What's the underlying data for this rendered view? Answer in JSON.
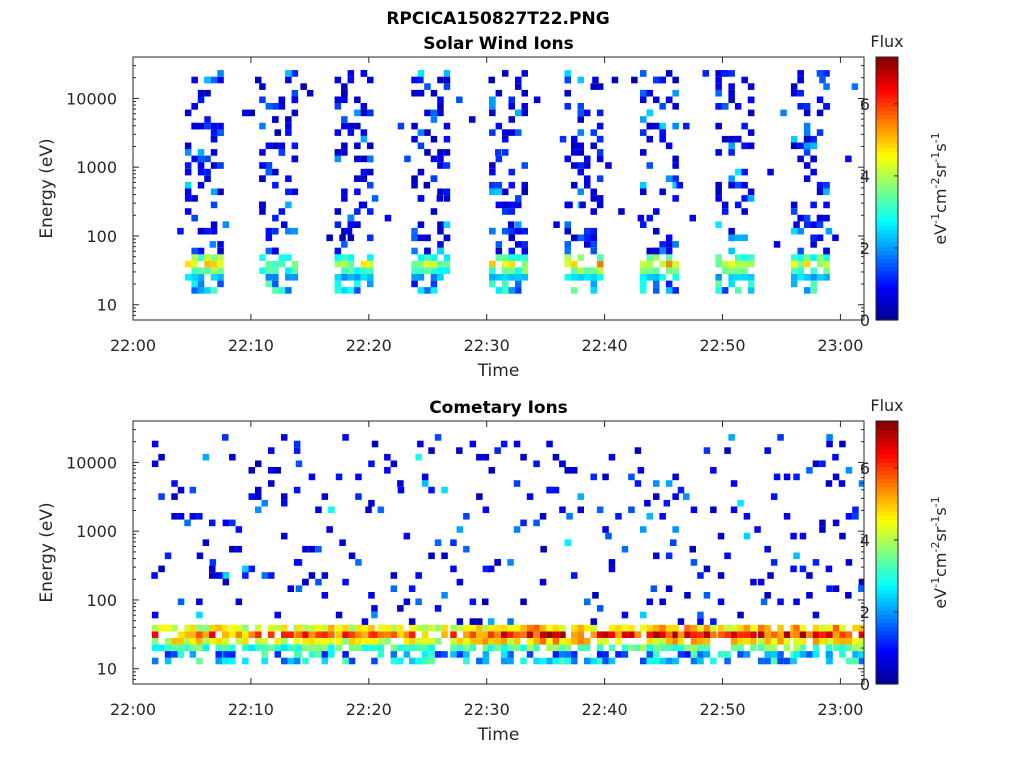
{
  "figure_title": "RPCICA150827T22.PNG",
  "colors": {
    "jet": [
      "#00008f",
      "#0000ff",
      "#0080ff",
      "#00ffff",
      "#80ff80",
      "#ffff00",
      "#ff8000",
      "#ff0000",
      "#800000"
    ]
  },
  "chart_data": [
    {
      "type": "heatmap",
      "title": "Solar Wind Ions",
      "xlabel": "Time",
      "ylabel": "Energy (eV)",
      "x_ticks": [
        "22:00",
        "22:10",
        "22:20",
        "22:30",
        "22:40",
        "22:50",
        "23:00"
      ],
      "xlim_minutes": [
        0,
        62
      ],
      "yscale": "log",
      "ylim": [
        6,
        40000
      ],
      "y_ticks": [
        "10",
        "100",
        "1000",
        "10000"
      ],
      "colorbar": {
        "title": "Flux",
        "unit_label": "eV-1cm-2sr-1s-1",
        "ticks": [
          "0",
          "2",
          "4",
          "6"
        ],
        "range": [
          0,
          7.3
        ]
      },
      "bursts": [
        {
          "center": 6.0,
          "peak_flux": 5.0
        },
        {
          "center": 12.3,
          "peak_flux": 4.2
        },
        {
          "center": 18.7,
          "peak_flux": 4.5
        },
        {
          "center": 25.2,
          "peak_flux": 4.2
        },
        {
          "center": 31.8,
          "peak_flux": 4.8
        },
        {
          "center": 38.2,
          "peak_flux": 5.3
        },
        {
          "center": 44.6,
          "peak_flux": 5.3
        },
        {
          "center": 51.0,
          "peak_flux": 4.5
        },
        {
          "center": 57.4,
          "peak_flux": 4.6
        }
      ],
      "background_peak_energy": 32
    },
    {
      "type": "heatmap",
      "title": "Cometary Ions",
      "xlabel": "Time",
      "ylabel": "Energy (eV)",
      "x_ticks": [
        "22:00",
        "22:10",
        "22:20",
        "22:30",
        "22:40",
        "22:50",
        "23:00"
      ],
      "xlim_minutes": [
        0,
        62
      ],
      "yscale": "log",
      "ylim": [
        6,
        40000
      ],
      "y_ticks": [
        "10",
        "100",
        "1000",
        "10000"
      ],
      "colorbar": {
        "title": "Flux",
        "unit_label": "eV-1cm-2sr-1s-1",
        "ticks": [
          "0",
          "2",
          "4",
          "6"
        ],
        "range": [
          0,
          7.3
        ]
      },
      "bursts": [
        {
          "center": 3.0,
          "peak_flux": 6.2
        },
        {
          "center": 6.2,
          "peak_flux": 6.3
        },
        {
          "center": 9.0,
          "peak_flux": 6.0
        },
        {
          "center": 12.3,
          "peak_flux": 6.0
        },
        {
          "center": 15.2,
          "peak_flux": 6.5
        },
        {
          "center": 18.6,
          "peak_flux": 6.2
        },
        {
          "center": 21.6,
          "peak_flux": 6.3
        },
        {
          "center": 24.8,
          "peak_flux": 6.0
        },
        {
          "center": 28.3,
          "peak_flux": 6.6
        },
        {
          "center": 31.5,
          "peak_flux": 6.6
        },
        {
          "center": 34.8,
          "peak_flux": 7.0
        },
        {
          "center": 38.0,
          "peak_flux": 6.8
        },
        {
          "center": 41.2,
          "peak_flux": 6.6
        },
        {
          "center": 44.4,
          "peak_flux": 6.8
        },
        {
          "center": 47.6,
          "peak_flux": 7.0
        },
        {
          "center": 51.0,
          "peak_flux": 6.6
        },
        {
          "center": 54.4,
          "peak_flux": 6.8
        },
        {
          "center": 57.4,
          "peak_flux": 7.0
        },
        {
          "center": 60.2,
          "peak_flux": 7.0
        }
      ],
      "background_peak_energy": 30
    }
  ]
}
